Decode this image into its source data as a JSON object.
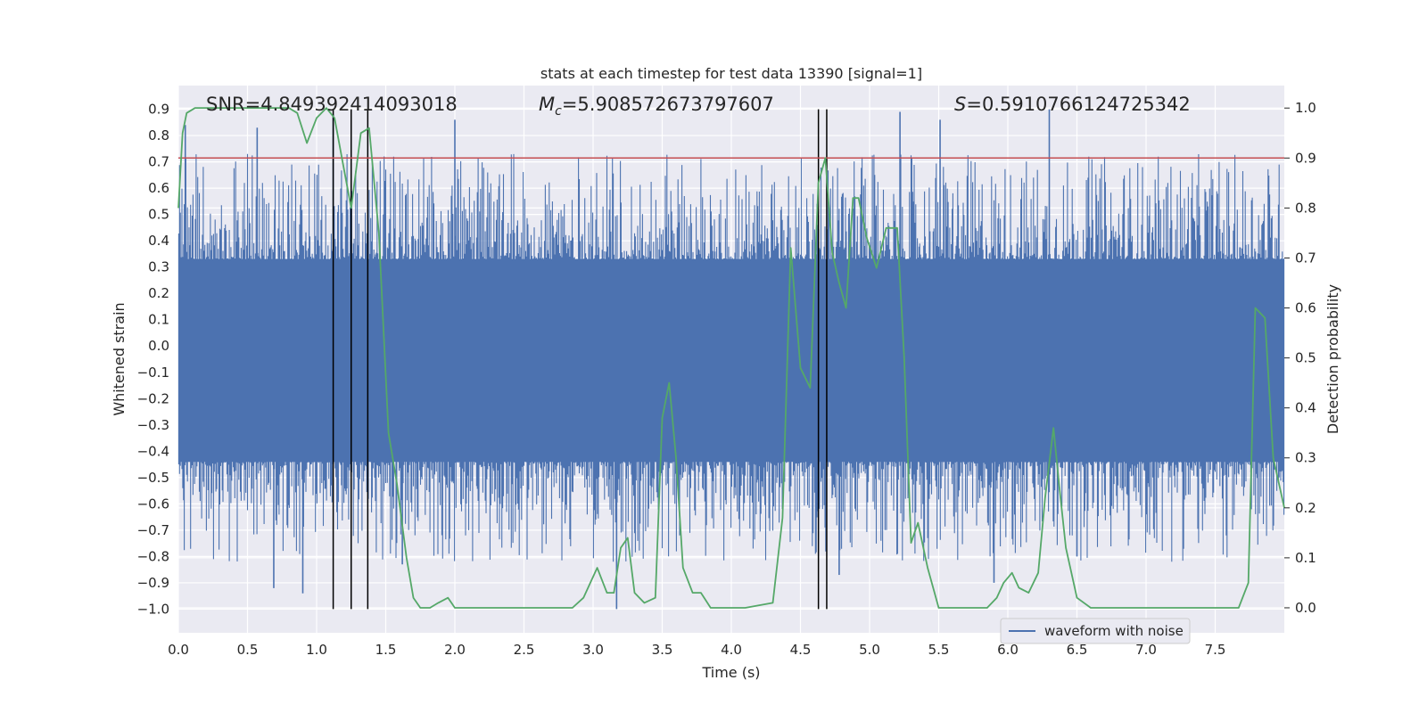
{
  "chart_data": {
    "type": "line",
    "title": "stats at each timestep for test data 13390 [signal=1]",
    "xlabel": "Time (s)",
    "ylabel": "Whitened strain",
    "y2label": "Detection probability",
    "xlim": [
      0,
      8
    ],
    "ylim": [
      -1.09,
      0.99
    ],
    "y2lim": [
      -0.05,
      1.045
    ],
    "xticks": [
      0.0,
      0.5,
      1.0,
      1.5,
      2.0,
      2.5,
      3.0,
      3.5,
      4.0,
      4.5,
      5.0,
      5.5,
      6.0,
      6.5,
      7.0,
      7.5
    ],
    "xtick_labels": [
      "0.0",
      "0.5",
      "1.0",
      "1.5",
      "2.0",
      "2.5",
      "3.0",
      "3.5",
      "4.0",
      "4.5",
      "5.0",
      "5.5",
      "6.0",
      "6.5",
      "7.0",
      "7.5"
    ],
    "yticks": [
      0.9,
      0.8,
      0.7,
      0.6,
      0.5,
      0.4,
      0.3,
      0.2,
      0.1,
      0.0,
      -0.1,
      -0.2,
      -0.3,
      -0.4,
      -0.5,
      -0.6,
      -0.7,
      -0.8,
      -0.9,
      -1.0
    ],
    "ytick_labels": [
      "0.9",
      "0.8",
      "0.7",
      "0.6",
      "0.5",
      "0.4",
      "0.3",
      "0.2",
      "0.1",
      "0.0",
      "−0.1",
      "−0.2",
      "−0.3",
      "−0.4",
      "−0.5",
      "−0.6",
      "−0.7",
      "−0.8",
      "−0.9",
      "−1.0"
    ],
    "y2ticks": [
      1.0,
      0.9,
      0.8,
      0.7,
      0.6,
      0.5,
      0.4,
      0.3,
      0.2,
      0.1,
      0.0
    ],
    "y2tick_labels": [
      "1.0",
      "0.9",
      "0.8",
      "0.7",
      "0.6",
      "0.5",
      "0.4",
      "0.3",
      "0.2",
      "0.1",
      "0.0"
    ],
    "annotations": {
      "snr": "SNR=4.849392414093018",
      "mc_symbol": "M",
      "mc_sub": "c",
      "mc_value": "=5.908572673797607",
      "s_symbol": "S",
      "s_value": "=0.5910766124725342"
    },
    "threshold": {
      "value": 0.9,
      "axis": "right",
      "color": "#c44e52"
    },
    "vlines": [
      1.12,
      1.25,
      1.37,
      4.63,
      4.69
    ],
    "vline_range": [
      -1.0,
      0.9
    ],
    "waveform": {
      "name": "waveform with noise",
      "color": "#4c72b0",
      "core_band": [
        -0.44,
        0.33
      ],
      "notable_spikes": [
        {
          "x": 0.05,
          "y": 0.84
        },
        {
          "x": 0.57,
          "y": 0.83
        },
        {
          "x": 1.12,
          "y": 0.88
        },
        {
          "x": 2.0,
          "y": 0.86
        },
        {
          "x": 5.22,
          "y": 0.89
        },
        {
          "x": 5.51,
          "y": 0.86
        },
        {
          "x": 6.3,
          "y": 0.9
        },
        {
          "x": 0.69,
          "y": -0.92
        },
        {
          "x": 0.9,
          "y": -0.94
        },
        {
          "x": 3.17,
          "y": -1.0
        },
        {
          "x": 5.9,
          "y": -0.9
        },
        {
          "x": 4.78,
          "y": -0.87
        },
        {
          "x": 1.62,
          "y": -0.83
        },
        {
          "x": 6.5,
          "y": -0.8
        }
      ]
    },
    "probability": {
      "color": "#55a868",
      "x": [
        0.0,
        0.03,
        0.06,
        0.12,
        0.2,
        0.35,
        0.5,
        0.65,
        0.8,
        0.86,
        0.93,
        1.0,
        1.07,
        1.13,
        1.19,
        1.25,
        1.32,
        1.38,
        1.45,
        1.52,
        1.58,
        1.65,
        1.7,
        1.75,
        1.82,
        1.88,
        1.95,
        2.0,
        2.07,
        2.15,
        2.3,
        2.5,
        2.7,
        2.85,
        2.93,
        2.98,
        3.03,
        3.1,
        3.15,
        3.2,
        3.25,
        3.3,
        3.37,
        3.45,
        3.5,
        3.55,
        3.6,
        3.65,
        3.72,
        3.78,
        3.85,
        3.95,
        4.1,
        4.3,
        4.37,
        4.43,
        4.5,
        4.57,
        4.63,
        4.68,
        4.73,
        4.78,
        4.83,
        4.88,
        4.92,
        4.98,
        5.05,
        5.12,
        5.2,
        5.25,
        5.3,
        5.35,
        5.42,
        5.5,
        5.6,
        5.75,
        5.85,
        5.92,
        5.97,
        6.03,
        6.08,
        6.15,
        6.22,
        6.27,
        6.33,
        6.37,
        6.42,
        6.5,
        6.6,
        6.8,
        7.0,
        7.3,
        7.5,
        7.62,
        7.67,
        7.74,
        7.79,
        7.86,
        7.92,
        8.0
      ],
      "y": [
        0.8,
        0.95,
        0.99,
        1.0,
        1.0,
        1.0,
        1.0,
        1.0,
        1.0,
        0.99,
        0.93,
        0.98,
        1.0,
        0.98,
        0.89,
        0.8,
        0.95,
        0.96,
        0.75,
        0.35,
        0.25,
        0.1,
        0.02,
        0.0,
        0.0,
        0.01,
        0.02,
        0.0,
        0.0,
        0.0,
        0.0,
        0.0,
        0.0,
        0.0,
        0.02,
        0.05,
        0.08,
        0.03,
        0.03,
        0.12,
        0.14,
        0.03,
        0.01,
        0.02,
        0.38,
        0.45,
        0.3,
        0.08,
        0.03,
        0.03,
        0.0,
        0.0,
        0.0,
        0.01,
        0.18,
        0.72,
        0.48,
        0.44,
        0.85,
        0.9,
        0.71,
        0.65,
        0.6,
        0.82,
        0.82,
        0.74,
        0.68,
        0.76,
        0.76,
        0.5,
        0.13,
        0.17,
        0.08,
        0.0,
        0.0,
        0.0,
        0.0,
        0.02,
        0.05,
        0.07,
        0.04,
        0.03,
        0.07,
        0.22,
        0.36,
        0.25,
        0.12,
        0.02,
        0.0,
        0.0,
        0.0,
        0.0,
        0.0,
        0.0,
        0.0,
        0.05,
        0.6,
        0.58,
        0.3,
        0.2
      ]
    },
    "legend": {
      "label": "waveform with noise",
      "position": "bottom-right"
    }
  }
}
